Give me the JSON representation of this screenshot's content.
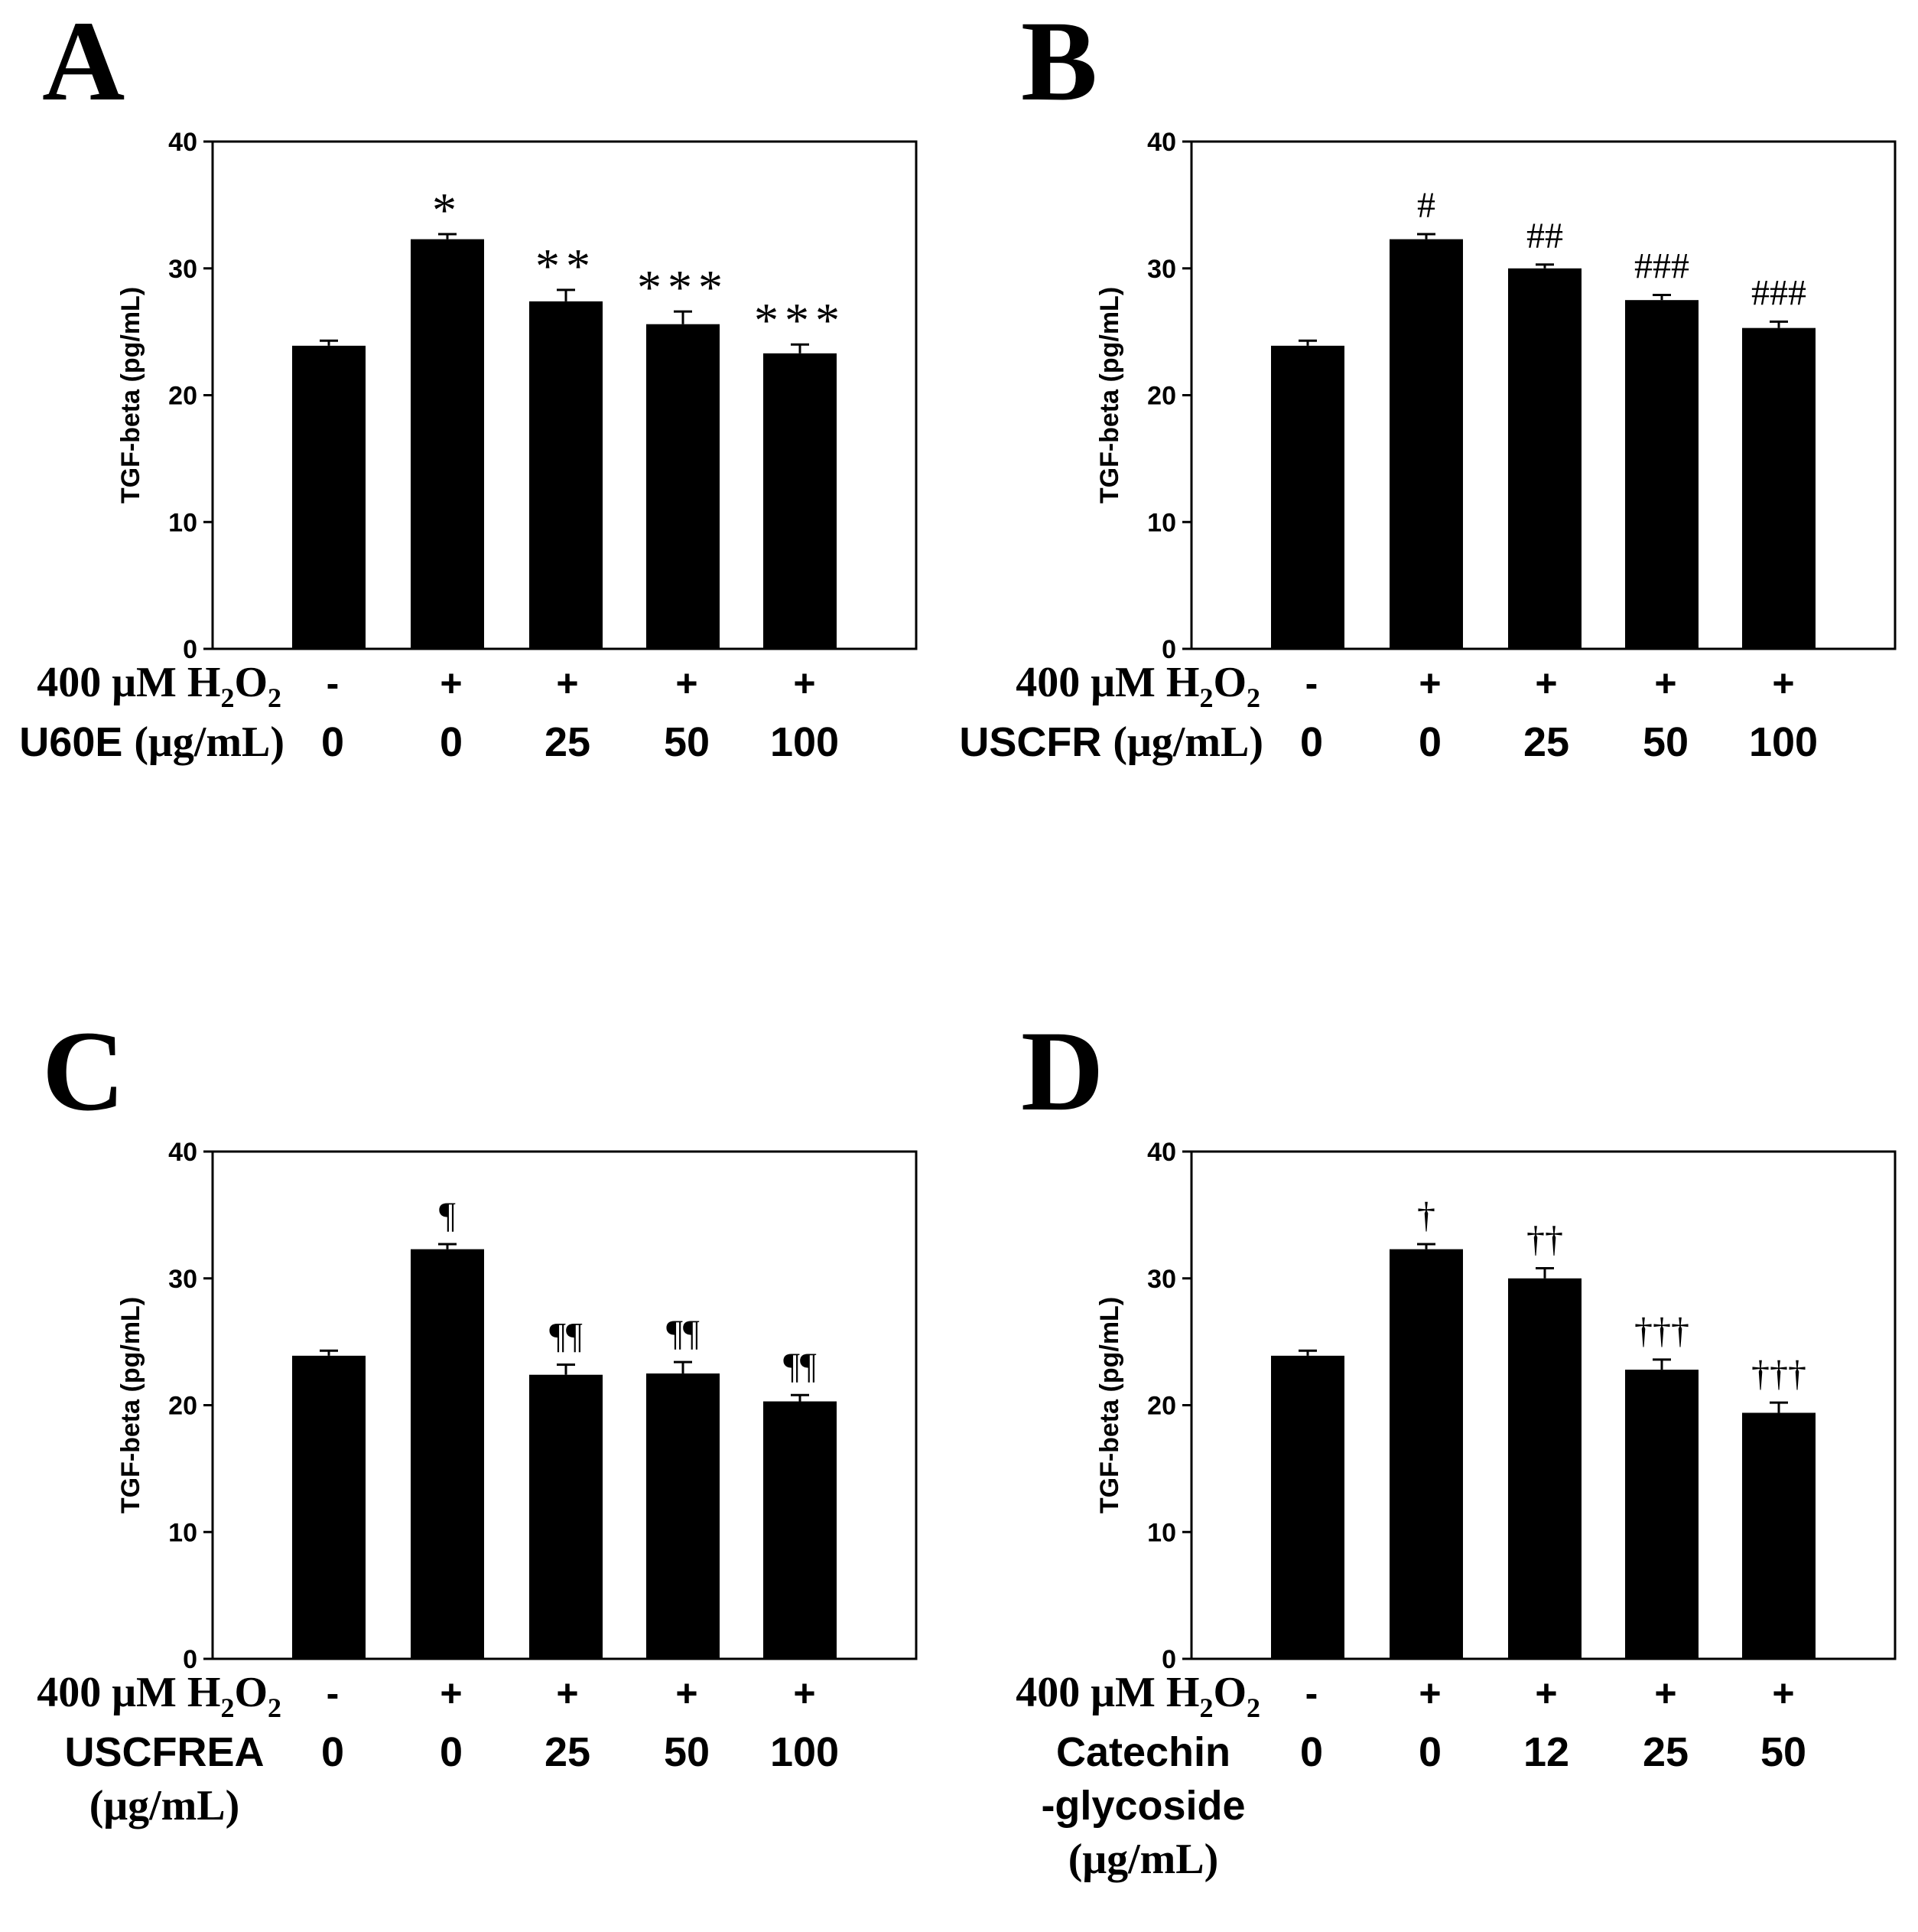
{
  "chart_data": [
    {
      "type": "bar",
      "panel": "A",
      "ylabel": "TGF-beta (pg/mL)",
      "ylim": [
        0,
        40
      ],
      "yticks": [
        "0",
        "10",
        "20",
        "30",
        "40"
      ],
      "values": [
        23.9,
        32.3,
        27.4,
        25.6,
        23.3
      ],
      "errors": [
        0.4,
        0.4,
        0.9,
        1.0,
        0.7
      ],
      "marks": [
        "",
        "*",
        "**",
        "***",
        "***"
      ],
      "rows": [
        {
          "label": "400 μM H",
          "sub1": "2",
          "mid": "O",
          "sub2": "2",
          "cells": [
            "-",
            "+",
            "+",
            "+",
            "+"
          ]
        },
        {
          "label_lines": [
            "U60E (μg/mL)"
          ],
          "cells": [
            "0",
            "0",
            "25",
            "50",
            "100"
          ]
        }
      ]
    },
    {
      "type": "bar",
      "panel": "B",
      "ylabel": "TGF-beta (pg/mL)",
      "ylim": [
        0,
        40
      ],
      "yticks": [
        "0",
        "10",
        "20",
        "30",
        "40"
      ],
      "values": [
        23.9,
        32.3,
        30.0,
        27.5,
        25.3
      ],
      "errors": [
        0.4,
        0.4,
        0.3,
        0.4,
        0.5
      ],
      "marks": [
        "",
        "#",
        "##",
        "###",
        "###"
      ],
      "rows": [
        {
          "label": "400 μM H",
          "sub1": "2",
          "mid": "O",
          "sub2": "2",
          "cells": [
            "-",
            "+",
            "+",
            "+",
            "+"
          ]
        },
        {
          "label_lines": [
            "USCFR (μg/mL)"
          ],
          "cells": [
            "0",
            "0",
            "25",
            "50",
            "100"
          ]
        }
      ]
    },
    {
      "type": "bar",
      "panel": "C",
      "ylabel": "TGF-beta (pg/mL)",
      "ylim": [
        0,
        40
      ],
      "yticks": [
        "0",
        "10",
        "20",
        "30",
        "40"
      ],
      "values": [
        23.9,
        32.3,
        22.4,
        22.5,
        20.3
      ],
      "errors": [
        0.4,
        0.4,
        0.8,
        0.9,
        0.5
      ],
      "marks": [
        "",
        "¶",
        "¶¶",
        "¶¶",
        "¶¶"
      ],
      "rows": [
        {
          "label": "400 μM H",
          "sub1": "2",
          "mid": "O",
          "sub2": "2",
          "cells": [
            "-",
            "+",
            "+",
            "+",
            "+"
          ]
        },
        {
          "label_lines": [
            "USCFREA",
            "(μg/mL)"
          ],
          "cells": [
            "0",
            "0",
            "25",
            "50",
            "100"
          ]
        }
      ]
    },
    {
      "type": "bar",
      "panel": "D",
      "ylabel": "TGF-beta (pg/mL)",
      "ylim": [
        0,
        40
      ],
      "yticks": [
        "0",
        "10",
        "20",
        "30",
        "40"
      ],
      "values": [
        23.9,
        32.3,
        30.0,
        22.8,
        19.4
      ],
      "errors": [
        0.4,
        0.4,
        0.8,
        0.8,
        0.8
      ],
      "marks": [
        "",
        "†",
        "††",
        "†††",
        "†††"
      ],
      "rows": [
        {
          "label": "400 μM H",
          "sub1": "2",
          "mid": "O",
          "sub2": "2",
          "cells": [
            "-",
            "+",
            "+",
            "+",
            "+"
          ]
        },
        {
          "label_lines": [
            "Catechin",
            "-glycoside",
            "(μg/mL)"
          ],
          "cells": [
            "0",
            "0",
            "12",
            "25",
            "50"
          ]
        }
      ]
    }
  ]
}
